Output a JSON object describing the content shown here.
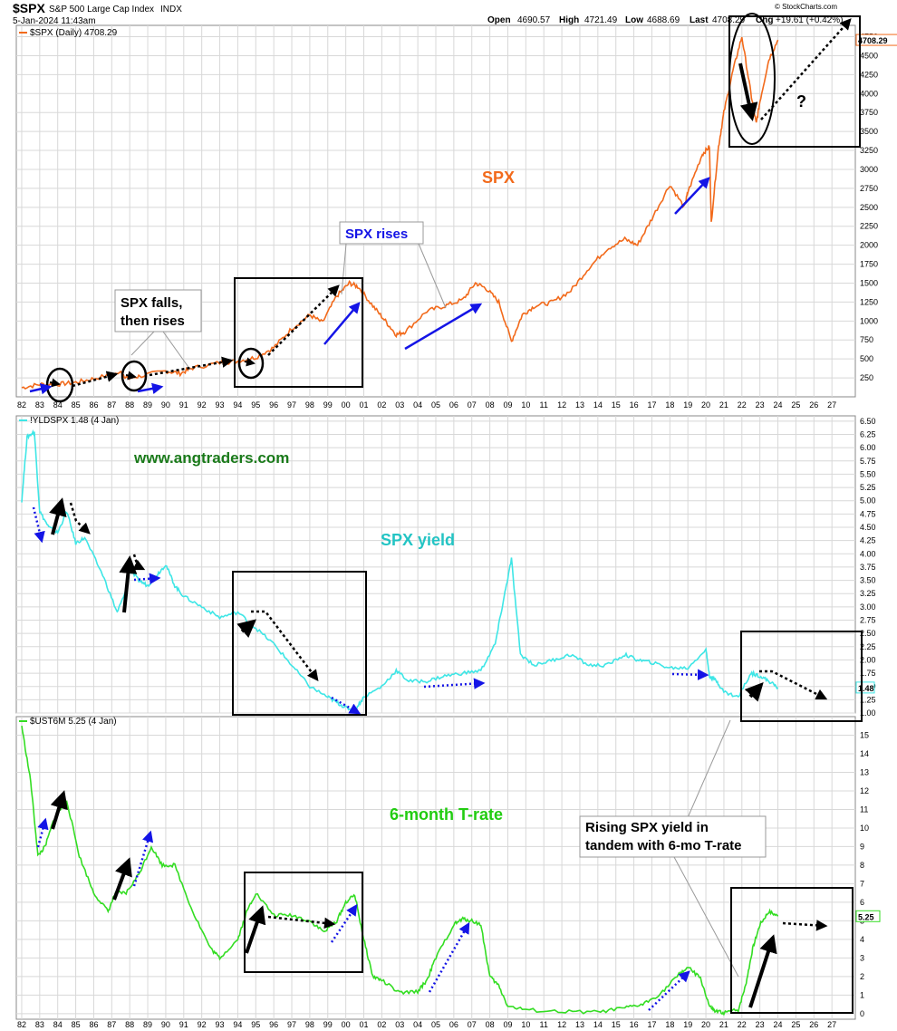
{
  "header": {
    "symbol": "$SPX",
    "description": "S&P 500 Large Cap Index",
    "exchange": "INDX",
    "timestamp": "5-Jan-2024 11:43am",
    "open_label": "Open",
    "open": "4690.57",
    "high_label": "High",
    "high": "4721.49",
    "low_label": "Low",
    "low": "4688.69",
    "last_label": "Last",
    "last": "4708.29",
    "chg_label": "Chg",
    "chg": "+19.61 (+0.42%)",
    "watermark": "© StockCharts.com"
  },
  "colors": {
    "spx": "#f26a1b",
    "yield": "#3ee6e6",
    "trate": "#33dd22",
    "blue_arrow": "#1414e6",
    "black": "#000000",
    "grid": "#d8d8d8",
    "site_text": "#1a7a1a"
  },
  "chart_data": [
    {
      "type": "line",
      "panel": "top",
      "legend": "$SPX (Daily) 4708.29",
      "last_value_tag": "4708.29",
      "series": [
        {
          "name": "$SPX (Daily)",
          "x": [
            1982.0,
            1983.0,
            1984.0,
            1985.0,
            1986.0,
            1987.5,
            1987.9,
            1988.5,
            1990.0,
            1990.8,
            1991.5,
            1993.0,
            1994.0,
            1995.0,
            1996.0,
            1997.0,
            1998.0,
            1998.7,
            1999.5,
            2000.2,
            2000.7,
            2001.5,
            2002.2,
            2002.8,
            2003.3,
            2004.5,
            2005.5,
            2006.5,
            2007.2,
            2007.8,
            2008.5,
            2009.2,
            2009.8,
            2010.5,
            2011.5,
            2012.5,
            2013.5,
            2014.5,
            2015.5,
            2016.2,
            2017.0,
            2018.0,
            2018.8,
            2019.0,
            2019.8,
            2020.2,
            2020.3,
            2020.7,
            2021.0,
            2021.5,
            2022.0,
            2022.5,
            2022.8,
            2023.0,
            2023.5,
            2024.0
          ],
          "values": [
            120,
            165,
            165,
            190,
            240,
            320,
            240,
            270,
            340,
            310,
            380,
            450,
            470,
            520,
            650,
            900,
            1080,
            980,
            1330,
            1500,
            1450,
            1200,
            1000,
            820,
            860,
            1130,
            1200,
            1280,
            1500,
            1430,
            1250,
            730,
            1080,
            1200,
            1250,
            1400,
            1700,
            1950,
            2080,
            2000,
            2350,
            2800,
            2500,
            2700,
            3200,
            3300,
            2300,
            3300,
            3750,
            4300,
            4750,
            4000,
            3600,
            3900,
            4450,
            4708
          ]
        }
      ],
      "yticks": [
        250,
        500,
        750,
        1000,
        1250,
        1500,
        1750,
        2000,
        2250,
        2500,
        2750,
        3000,
        3250,
        3500,
        3750,
        4000,
        4250,
        4500,
        4750
      ],
      "ylim": [
        0,
        4900
      ],
      "annotations": [
        "SPX",
        "SPX falls,",
        "then rises",
        "SPX rises",
        "?"
      ]
    },
    {
      "type": "line",
      "panel": "middle",
      "legend": "!YLDSPX 1.48 (4 Jan)",
      "last_value_tag": "1.48",
      "series": [
        {
          "name": "!YLDSPX",
          "x": [
            1982.0,
            1982.3,
            1982.7,
            1983.0,
            1983.5,
            1984.0,
            1984.5,
            1985.0,
            1985.5,
            1986.5,
            1987.3,
            1987.8,
            1988.0,
            1988.5,
            1989.0,
            1989.5,
            1990.0,
            1990.5,
            1991.0,
            1992.0,
            1993.0,
            1994.0,
            1995.0,
            1996.0,
            1997.0,
            1998.0,
            1999.0,
            1999.5,
            2000.0,
            2000.5,
            2001.0,
            2002.0,
            2002.8,
            2003.5,
            2004.5,
            2005.5,
            2006.5,
            2007.5,
            2008.3,
            2008.8,
            2009.2,
            2009.7,
            2010.5,
            2011.5,
            2012.5,
            2013.5,
            2014.5,
            2015.5,
            2016.2,
            2017.0,
            2018.0,
            2019.0,
            2020.0,
            2020.2,
            2020.6,
            2021.0,
            2021.8,
            2022.5,
            2023.0,
            2023.5,
            2024.0
          ],
          "values": [
            5.0,
            6.2,
            6.3,
            4.8,
            4.5,
            4.4,
            4.8,
            4.2,
            4.3,
            3.6,
            2.9,
            3.3,
            3.7,
            3.5,
            3.4,
            3.6,
            3.8,
            3.4,
            3.2,
            3.0,
            2.8,
            2.9,
            2.6,
            2.3,
            1.9,
            1.5,
            1.3,
            1.2,
            1.1,
            1.05,
            1.3,
            1.5,
            1.8,
            1.6,
            1.6,
            1.7,
            1.75,
            1.8,
            2.3,
            3.2,
            3.9,
            2.1,
            1.9,
            2.0,
            2.1,
            1.9,
            1.9,
            2.1,
            2.0,
            1.95,
            1.85,
            1.85,
            2.2,
            1.7,
            1.6,
            1.4,
            1.3,
            1.75,
            1.7,
            1.6,
            1.48
          ]
        }
      ],
      "yticks": [
        1.0,
        1.25,
        1.5,
        1.75,
        2.0,
        2.25,
        2.5,
        2.75,
        3.0,
        3.25,
        3.5,
        3.75,
        4.0,
        4.25,
        4.5,
        4.75,
        5.0,
        5.25,
        5.5,
        5.75,
        6.0,
        6.25,
        6.5
      ],
      "ylim": [
        1.0,
        6.6
      ],
      "annotations": [
        "www.angtraders.com",
        "SPX yield"
      ]
    },
    {
      "type": "line",
      "panel": "bottom",
      "legend": "$UST6M 5.25 (4 Jan)",
      "last_value_tag": "5.25",
      "series": [
        {
          "name": "$UST6M",
          "x": [
            1982.0,
            1982.5,
            1982.9,
            1983.3,
            1983.8,
            1984.5,
            1985.2,
            1986.0,
            1986.8,
            1987.2,
            1987.8,
            1988.5,
            1989.2,
            1989.8,
            1990.5,
            1991.5,
            1992.5,
            1993.0,
            1994.0,
            1994.5,
            1995.0,
            1996.0,
            1997.0,
            1998.0,
            1998.8,
            1999.5,
            2000.0,
            2000.5,
            2001.0,
            2001.5,
            2002.0,
            2003.0,
            2004.0,
            2004.5,
            2005.0,
            2006.0,
            2006.5,
            2007.0,
            2007.5,
            2008.0,
            2008.5,
            2009.0,
            2010.0,
            2012.0,
            2014.0,
            2015.5,
            2016.5,
            2017.5,
            2018.5,
            2019.0,
            2019.7,
            2020.2,
            2020.5,
            2021.0,
            2021.8,
            2022.2,
            2022.6,
            2023.0,
            2023.5,
            2024.0
          ],
          "values": [
            15.5,
            12.5,
            8.5,
            9.0,
            10.5,
            11.5,
            8.5,
            6.5,
            5.5,
            6.5,
            6.5,
            7.5,
            9.0,
            8.0,
            8.0,
            5.5,
            3.5,
            3.0,
            4.0,
            5.5,
            6.5,
            5.3,
            5.3,
            5.0,
            4.4,
            5.0,
            6.0,
            6.4,
            4.0,
            2.0,
            1.8,
            1.1,
            1.2,
            1.8,
            3.0,
            4.8,
            5.1,
            5.0,
            4.8,
            2.0,
            1.5,
            0.4,
            0.2,
            0.1,
            0.08,
            0.3,
            0.5,
            1.1,
            2.1,
            2.5,
            1.9,
            0.4,
            0.12,
            0.05,
            0.2,
            1.5,
            3.5,
            4.8,
            5.5,
            5.25
          ]
        }
      ],
      "yticks": [
        0,
        1,
        2,
        3,
        4,
        5,
        6,
        7,
        8,
        9,
        10,
        11,
        12,
        13,
        14,
        15
      ],
      "ylim": [
        -0.3,
        16
      ],
      "annotations": [
        "6-month T-rate",
        "Rising SPX yield in",
        "tandem with 6-mo T-rate"
      ]
    }
  ],
  "x_axis": {
    "start_year": 1981.7,
    "end_year": 2028.3,
    "labels": [
      "82",
      "83",
      "84",
      "85",
      "86",
      "87",
      "88",
      "89",
      "90",
      "91",
      "92",
      "93",
      "94",
      "95",
      "96",
      "97",
      "98",
      "99",
      "00",
      "01",
      "02",
      "03",
      "04",
      "05",
      "06",
      "07",
      "08",
      "09",
      "10",
      "11",
      "12",
      "13",
      "14",
      "15",
      "16",
      "17",
      "18",
      "19",
      "20",
      "21",
      "22",
      "23",
      "24",
      "25",
      "26",
      "27"
    ]
  }
}
